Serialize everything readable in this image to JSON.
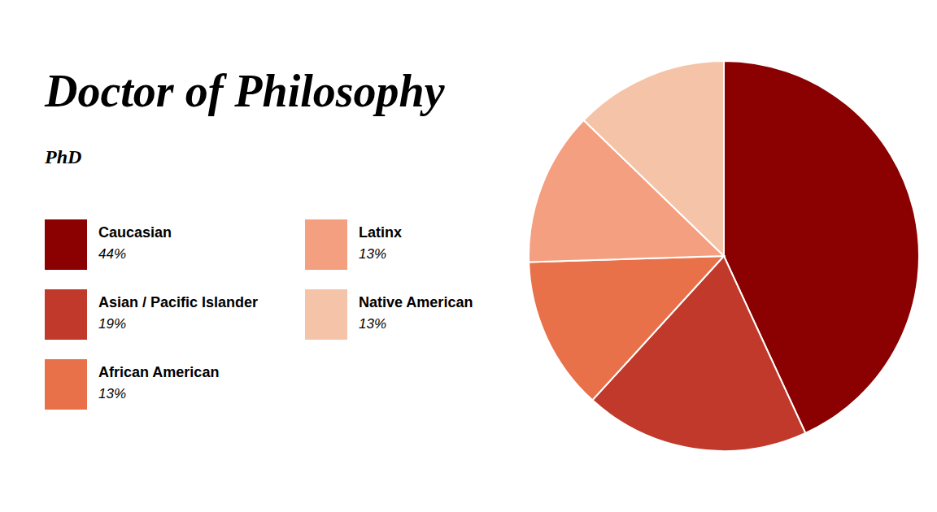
{
  "chart_data": {
    "type": "pie",
    "title": "Doctor of Philosophy",
    "subtitle": "PhD",
    "categories": [
      "Caucasian",
      "Asian / Pacific Islander",
      "African American",
      "Latinx",
      "Native American"
    ],
    "values": [
      44,
      19,
      13,
      13,
      13
    ],
    "value_labels": [
      "44%",
      "19%",
      "13%",
      "13%",
      "13%"
    ],
    "colors": [
      "#8B0000",
      "#C0392B",
      "#E8714A",
      "#F4A080",
      "#F5C4A8"
    ],
    "legend": "left"
  }
}
